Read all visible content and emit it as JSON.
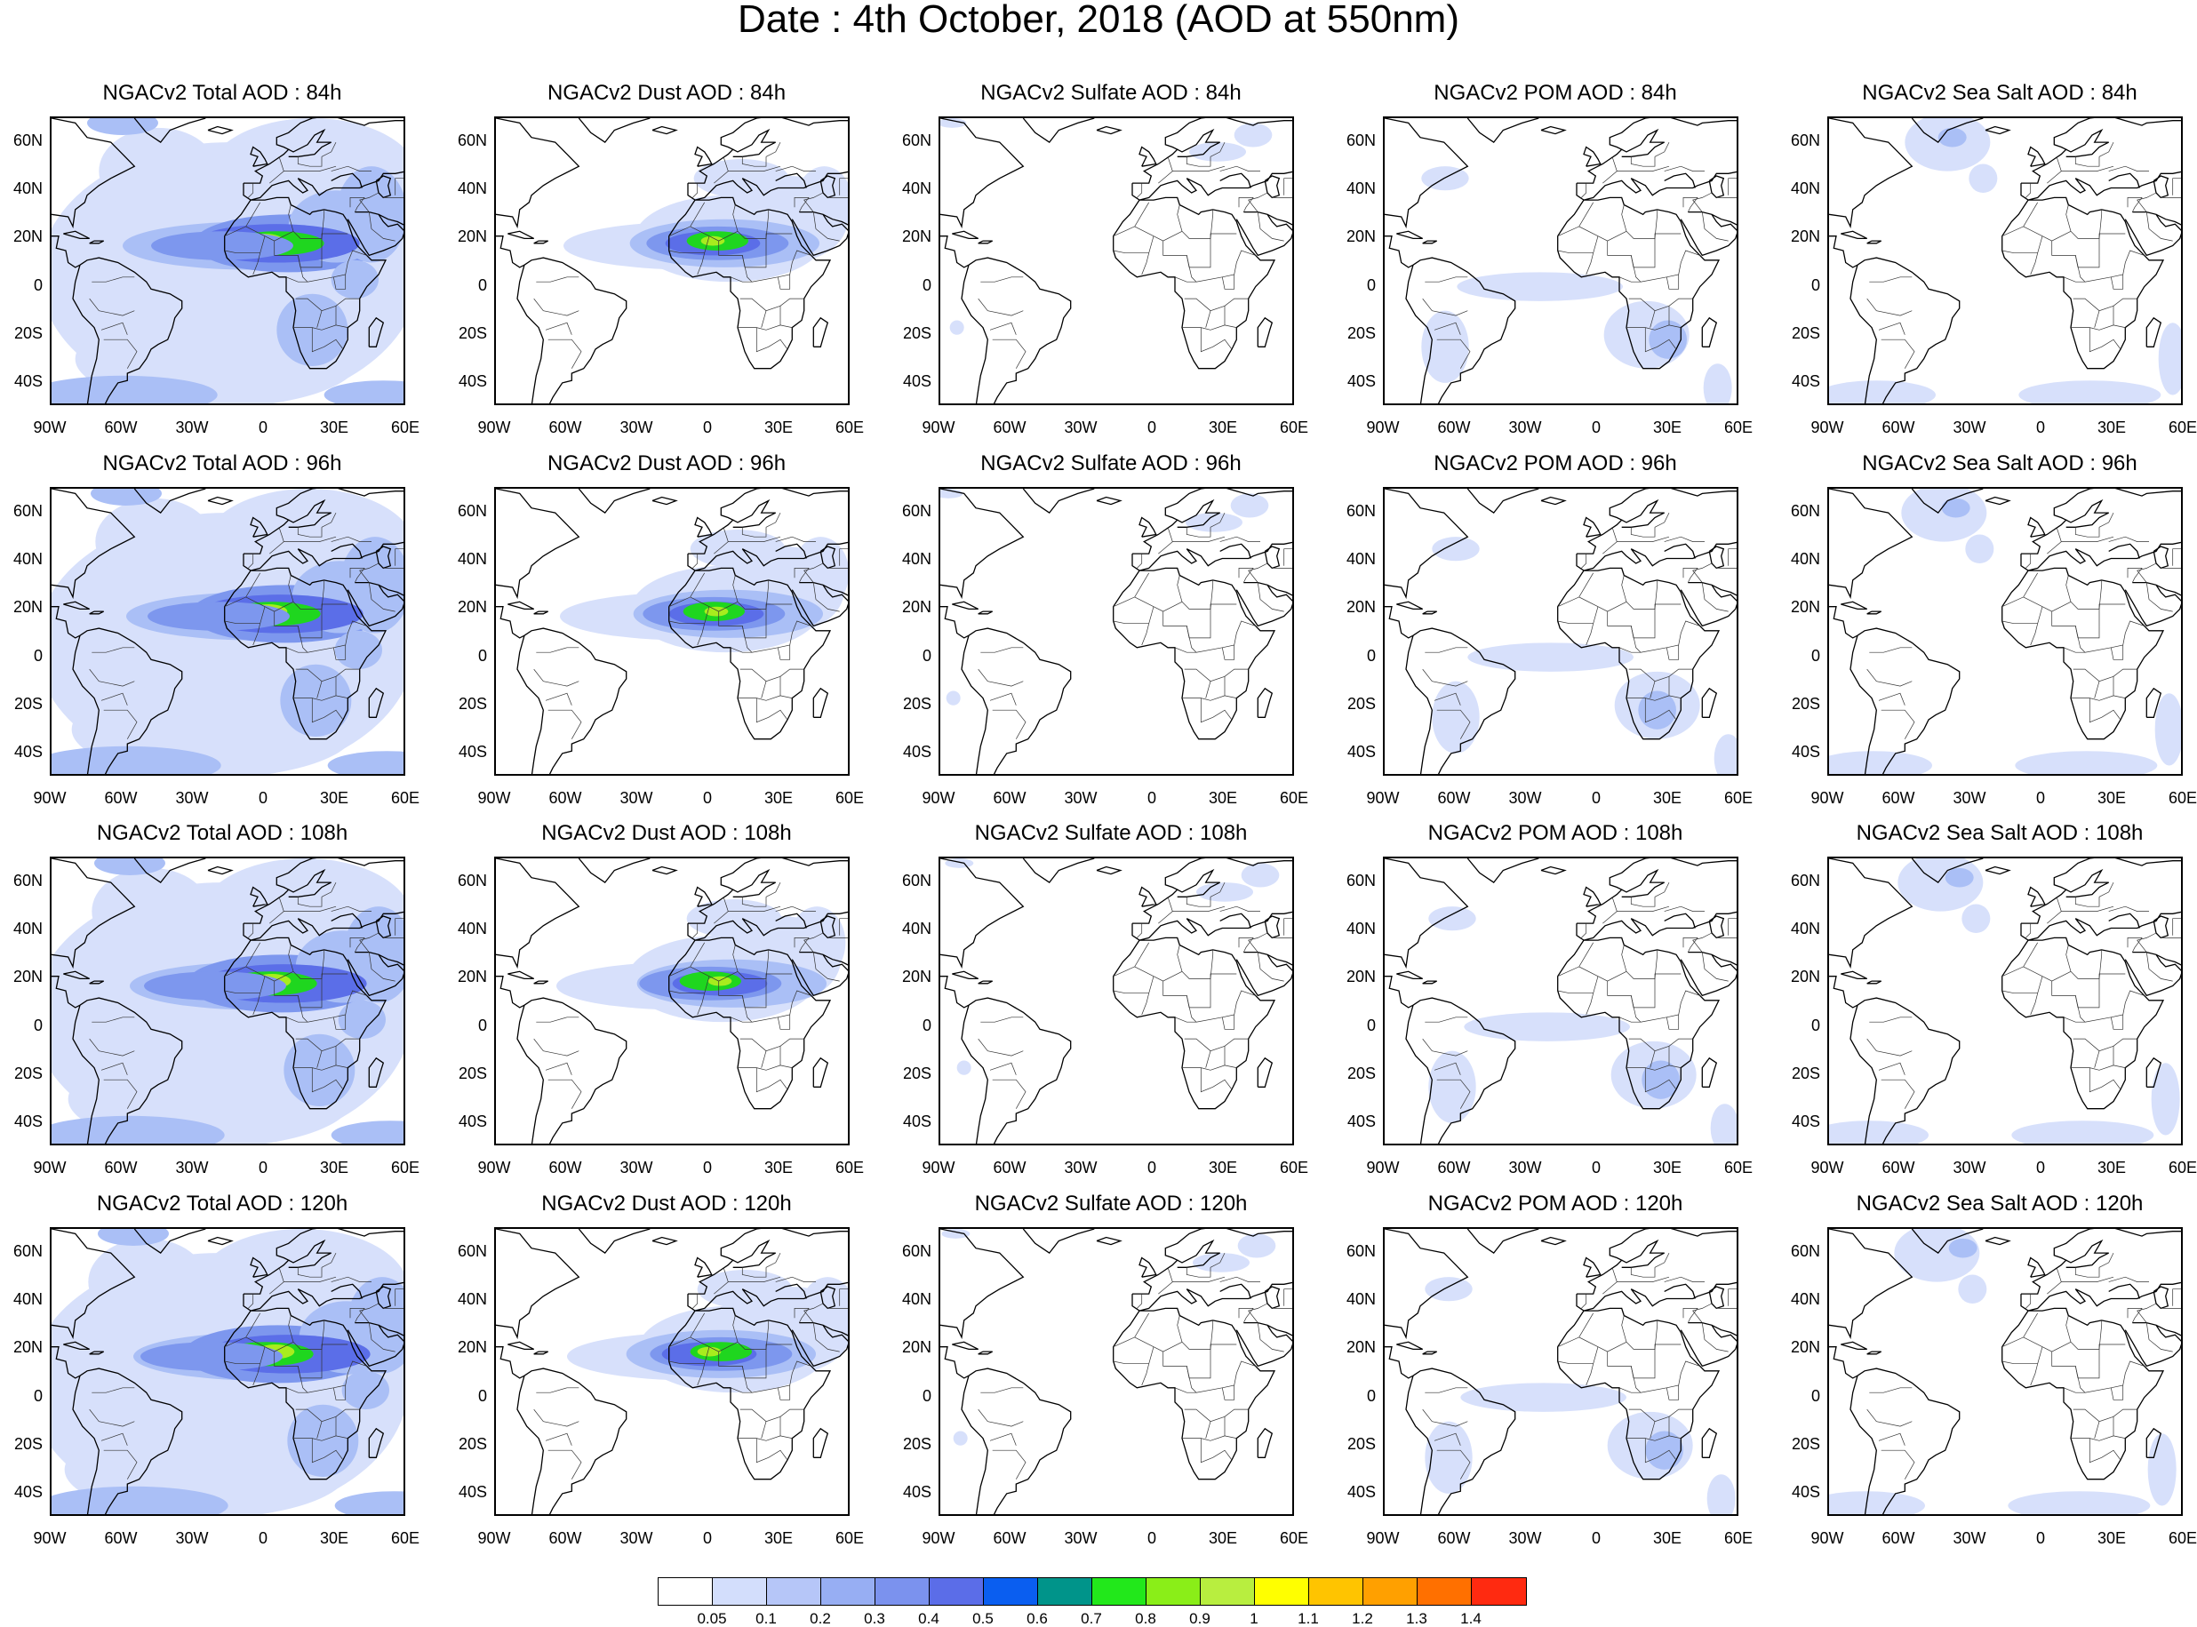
{
  "title": "Date : 4th October, 2018 (AOD at 550nm)",
  "lat_labels": [
    "60N",
    "40N",
    "20N",
    "0",
    "20S",
    "40S"
  ],
  "lon_labels": [
    "90W",
    "60W",
    "30W",
    "0",
    "30E",
    "60E"
  ],
  "colors": {
    "fill_light": "#d7e0fb",
    "fill_mid": "#aabff6",
    "fill_dense": "#7d97ee",
    "fill_strong": "#5b6ee8",
    "fill_peak": "#1fd61f",
    "fill_top": "#a8ec1e",
    "coast": "#000000"
  },
  "panels": [
    {
      "title": "NGACv2 Total AOD : 84h",
      "variable": "total"
    },
    {
      "title": "NGACv2 Dust AOD : 84h",
      "variable": "dust"
    },
    {
      "title": "NGACv2 Sulfate AOD : 84h",
      "variable": "sulfate"
    },
    {
      "title": "NGACv2 POM AOD : 84h",
      "variable": "pom"
    },
    {
      "title": "NGACv2 Sea Salt AOD : 84h",
      "variable": "seasalt"
    },
    {
      "title": "NGACv2 Total AOD : 96h",
      "variable": "total"
    },
    {
      "title": "NGACv2 Dust AOD : 96h",
      "variable": "dust"
    },
    {
      "title": "NGACv2 Sulfate AOD : 96h",
      "variable": "sulfate"
    },
    {
      "title": "NGACv2 POM AOD : 96h",
      "variable": "pom"
    },
    {
      "title": "NGACv2 Sea Salt AOD : 96h",
      "variable": "seasalt"
    },
    {
      "title": "NGACv2 Total AOD : 108h",
      "variable": "total"
    },
    {
      "title": "NGACv2 Dust AOD : 108h",
      "variable": "dust"
    },
    {
      "title": "NGACv2 Sulfate AOD : 108h",
      "variable": "sulfate"
    },
    {
      "title": "NGACv2 POM AOD : 108h",
      "variable": "pom"
    },
    {
      "title": "NGACv2 Sea Salt AOD : 108h",
      "variable": "seasalt"
    },
    {
      "title": "NGACv2 Total AOD : 120h",
      "variable": "total"
    },
    {
      "title": "NGACv2 Dust AOD : 120h",
      "variable": "dust"
    },
    {
      "title": "NGACv2 Sulfate AOD : 120h",
      "variable": "sulfate"
    },
    {
      "title": "NGACv2 POM AOD : 120h",
      "variable": "pom"
    },
    {
      "title": "NGACv2 Sea Salt  AOD : 120h",
      "variable": "seasalt"
    }
  ],
  "colorbar": {
    "colors": [
      "#ffffff",
      "#d3defc",
      "#b6c6f8",
      "#97aef3",
      "#7b92ee",
      "#5b6de8",
      "#0a5ef0",
      "#00948a",
      "#22e81b",
      "#8aee18",
      "#b8ee3f",
      "#ffff00",
      "#ffc400",
      "#ffa000",
      "#ff7000",
      "#ff2a10"
    ],
    "labels": [
      "0.05",
      "0.1",
      "0.2",
      "0.3",
      "0.4",
      "0.5",
      "0.6",
      "0.7",
      "0.8",
      "0.9",
      "1",
      "1.1",
      "1.2",
      "1.3",
      "1.4"
    ]
  }
}
